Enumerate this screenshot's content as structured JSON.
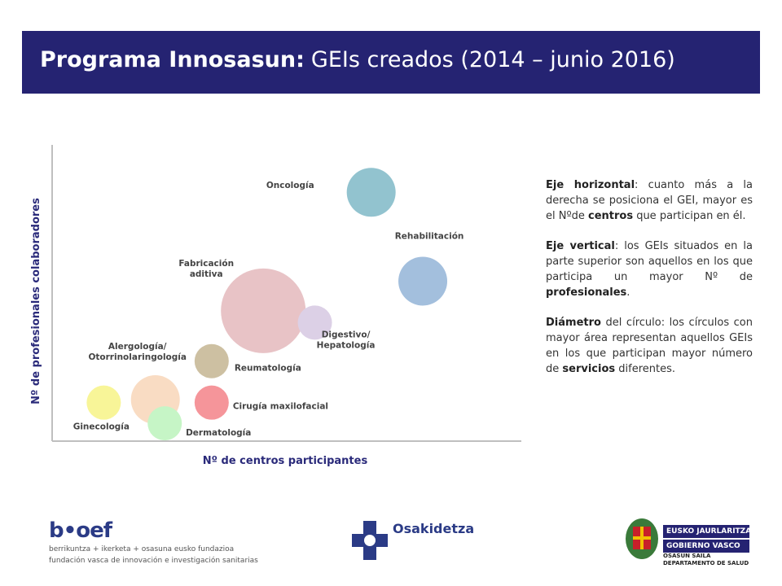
{
  "header": {
    "title_bold": "Programa Innosasun:",
    "title_rest": "GEIs creados (2014 – junio 2016)"
  },
  "chart_data": {
    "type": "bubble",
    "xlabel": "Nº de centros participantes",
    "ylabel": "Nº de profesionales colaboradores",
    "xlim": [
      0,
      100
    ],
    "ylim": [
      0,
      100
    ],
    "grid": false,
    "series": [
      {
        "label": "Oncología",
        "x": 68,
        "y": 84,
        "size": 30,
        "color": "#92c3cf"
      },
      {
        "label": "Rehabilitación",
        "x": 79,
        "y": 54,
        "size": 30,
        "color": "#a3bfdd"
      },
      {
        "label": "Fabricación aditiva",
        "x": 45,
        "y": 44,
        "size": 52,
        "color": "#e8c3c6"
      },
      {
        "label": "Digestivo/ Hepatología",
        "x": 56,
        "y": 40,
        "size": 21,
        "color": "#dcd0e6"
      },
      {
        "label": "Reumatología",
        "x": 34,
        "y": 27,
        "size": 21,
        "color": "#cdc0a2"
      },
      {
        "label": "Alergología/ Otorrinolaringología",
        "x": 22,
        "y": 14,
        "size": 30,
        "color": "#f9dcc3"
      },
      {
        "label": "Ginecología",
        "x": 11,
        "y": 13,
        "size": 21,
        "color": "#f8f598"
      },
      {
        "label": "Cirugía maxilofacial",
        "x": 34,
        "y": 13,
        "size": 21,
        "color": "#f5959a"
      },
      {
        "label": "Dermatología",
        "x": 24,
        "y": 6,
        "size": 21,
        "color": "#c6f5c6"
      }
    ]
  },
  "legend_text": {
    "p1_bold": "Eje horizontal",
    "p1_a": ": cuanto más a la derecha se posiciona el GEI, mayor es el Nºde ",
    "p1_b": "centros",
    "p1_c": " que participan en él.",
    "p2_bold": "Eje vertical",
    "p2_a": ": los GEIs situados en la parte superior son aquellos en los que participa un mayor Nº de ",
    "p2_b": "profesionales",
    "p2_c": ".",
    "p3_bold": "Diámetro",
    "p3_a": " del círculo: los círculos con mayor área representan aquellos GEIs en los que participan mayor número de ",
    "p3_b": "servicios",
    "p3_c": " diferentes."
  },
  "footer": {
    "bioef_logo": "b•oef",
    "bioef_line1": "berrikuntza + ikerketa + osasuna eusko fundazioa",
    "bioef_line2": "fundación vasca de innovación e investigación sanitarias",
    "osakidetza": "Osakidetza",
    "gv_line1": "EUSKO JAURLARITZA",
    "gv_line2": "GOBIERNO VASCO",
    "gv_sub1": "OSASUN SAILA",
    "gv_sub2": "DEPARTAMENTO DE SALUD"
  }
}
